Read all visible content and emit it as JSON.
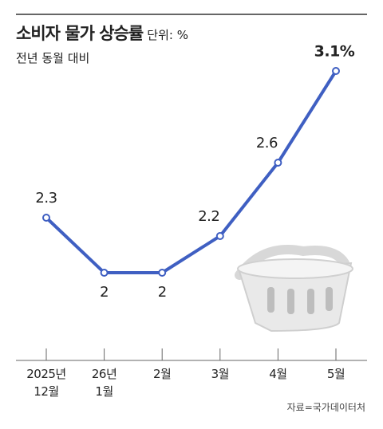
{
  "chart_data": {
    "type": "line",
    "title": "소비자 물가 상승률",
    "unit": "단위: %",
    "subtitle": "전년 동월 대비",
    "categories": [
      "2025년\n12월",
      "26년\n1월",
      "2월",
      "3월",
      "4월",
      "5월"
    ],
    "values": [
      2.3,
      2,
      2,
      2.2,
      2.6,
      3.1
    ],
    "value_labels": [
      "2.3",
      "2",
      "2",
      "2.2",
      "2.6",
      "3.1%"
    ],
    "color": "#3f5fc2",
    "ylim": [
      1.5,
      3.2
    ],
    "source": "자료=국가데이터처"
  }
}
